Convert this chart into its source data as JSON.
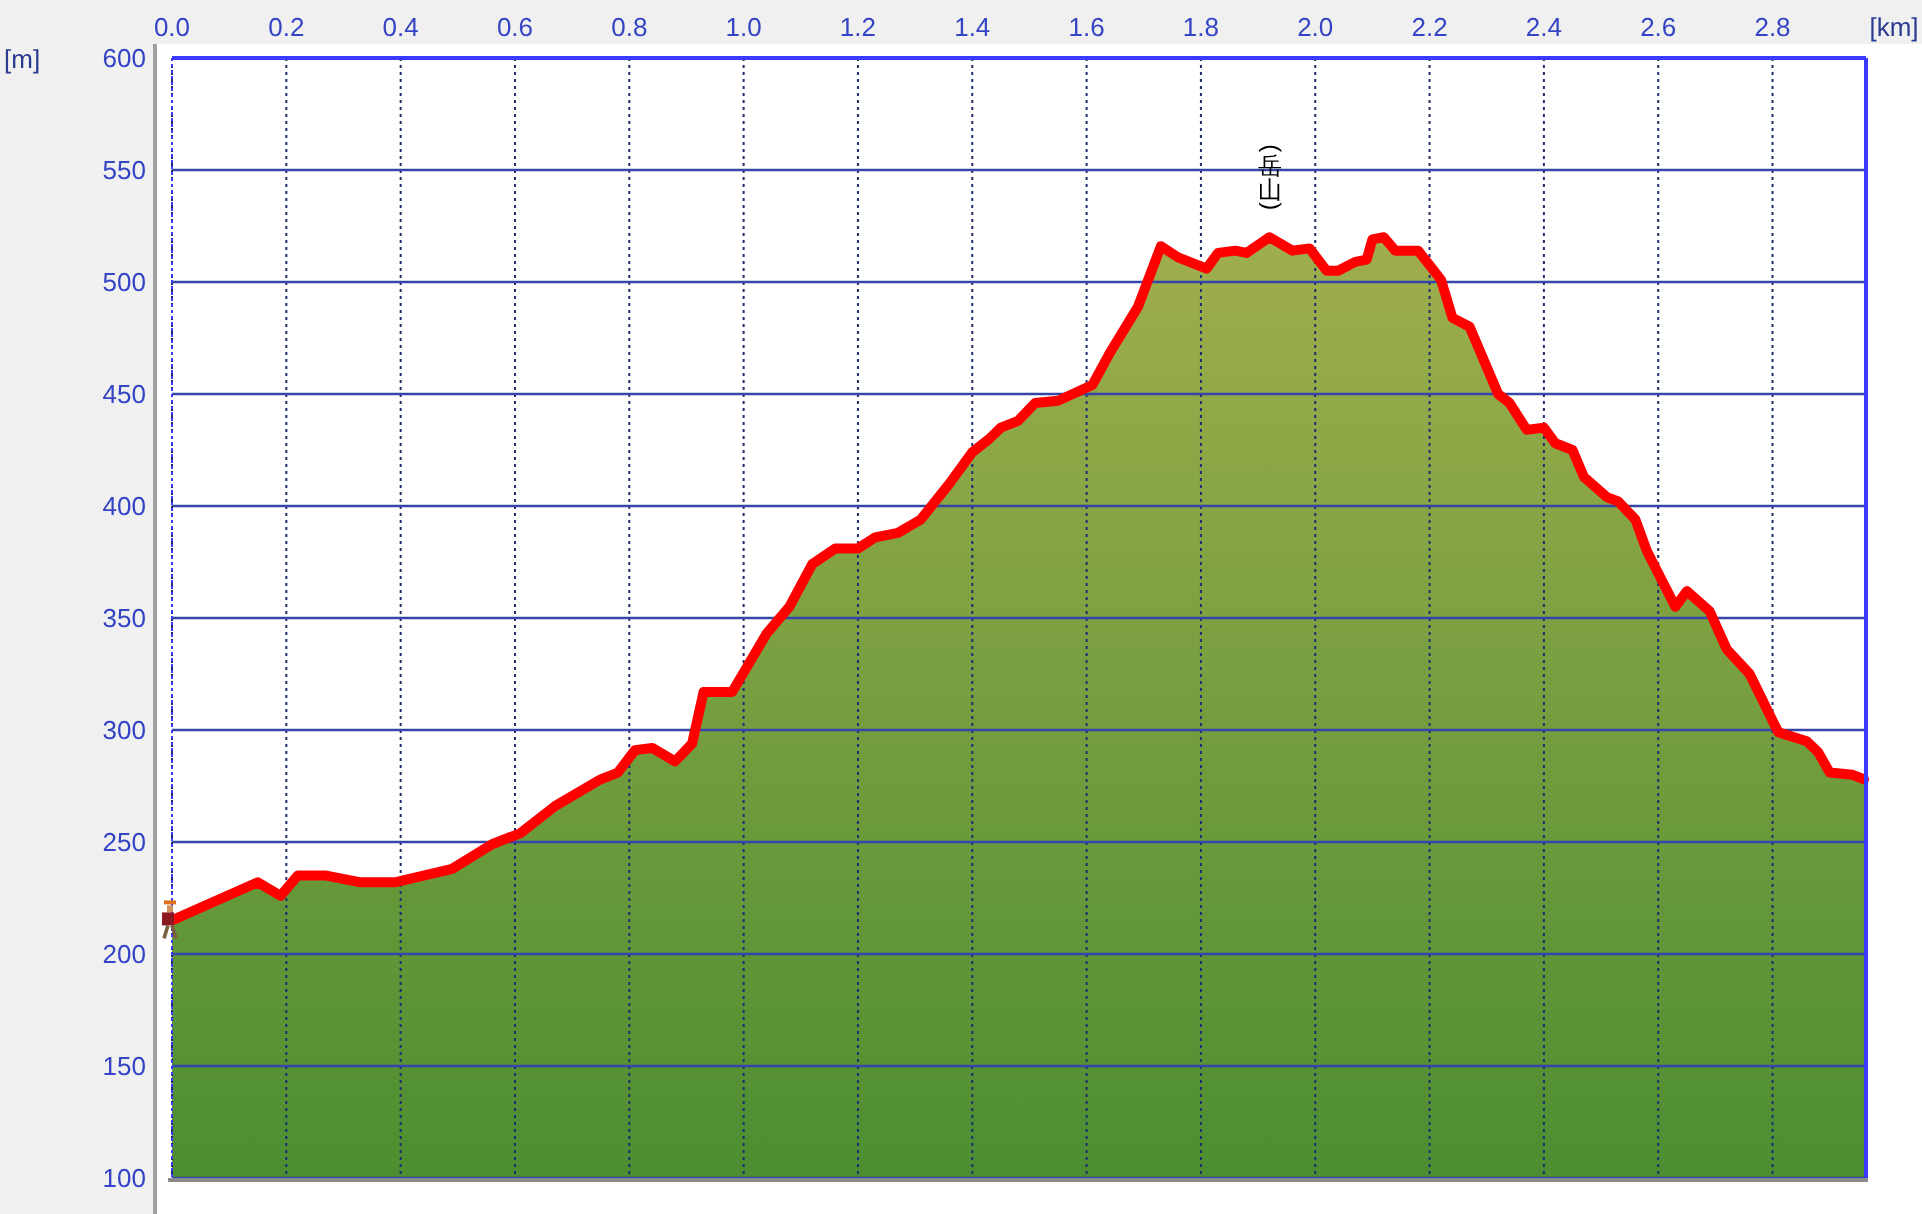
{
  "chart_data": {
    "type": "area",
    "xlabel": "[km]",
    "ylabel": "[m]",
    "x": [
      0,
      0.15,
      0.19,
      0.22,
      0.27,
      0.33,
      0.39,
      0.49,
      0.56,
      0.61,
      0.67,
      0.75,
      0.78,
      0.81,
      0.84,
      0.88,
      0.91,
      0.93,
      0.98,
      1.04,
      1.08,
      1.12,
      1.16,
      1.2,
      1.23,
      1.27,
      1.31,
      1.36,
      1.4,
      1.43,
      1.45,
      1.48,
      1.51,
      1.55,
      1.61,
      1.64,
      1.69,
      1.73,
      1.76,
      1.78,
      1.81,
      1.83,
      1.86,
      1.88,
      1.92,
      1.96,
      1.99,
      2.02,
      2.04,
      2.07,
      2.09,
      2.1,
      2.12,
      2.14,
      2.18,
      2.22,
      2.24,
      2.27,
      2.32,
      2.34,
      2.37,
      2.4,
      2.42,
      2.45,
      2.47,
      2.51,
      2.53,
      2.56,
      2.58,
      2.6,
      2.63,
      2.65,
      2.69,
      2.72,
      2.76,
      2.81,
      2.86,
      2.88,
      2.9,
      2.94,
      2.96
    ],
    "series": [
      {
        "color": "#ff0000",
        "values": [
          215,
          232,
          226,
          235,
          235,
          232,
          232,
          238,
          249,
          254,
          266,
          278,
          281,
          291,
          292,
          286,
          294,
          317,
          317,
          343,
          355,
          374,
          381,
          381,
          386,
          388,
          394,
          410,
          424,
          430,
          435,
          438,
          446,
          447,
          454,
          468,
          489,
          516,
          511,
          509,
          506,
          513,
          514,
          513,
          520,
          514,
          515,
          505,
          505,
          509,
          510,
          519,
          520,
          514,
          514,
          501,
          484,
          480,
          450,
          446,
          434,
          435,
          428,
          425,
          413,
          404,
          402,
          394,
          380,
          370,
          355,
          362,
          353,
          336,
          325,
          299,
          295,
          290,
          281,
          280,
          278
        ]
      }
    ],
    "xlim": [
      0,
      2.96
    ],
    "ylim": [
      100,
      600
    ],
    "xticks": [
      {
        "value": 0,
        "label": "0.0"
      },
      0.2,
      0.4,
      0.6,
      0.8,
      {
        "value": 1,
        "label": "1.0"
      },
      1.2,
      1.4,
      1.6,
      1.8,
      {
        "value": 2,
        "label": "2.0"
      },
      2.2,
      2.4,
      2.6,
      2.8
    ],
    "yticks": [
      100,
      150,
      200,
      250,
      300,
      350,
      400,
      450,
      500,
      550,
      600
    ],
    "grid": true,
    "annotations": [
      {
        "text": "(岳山)",
        "x": 1.92,
        "y": 520
      }
    ]
  }
}
